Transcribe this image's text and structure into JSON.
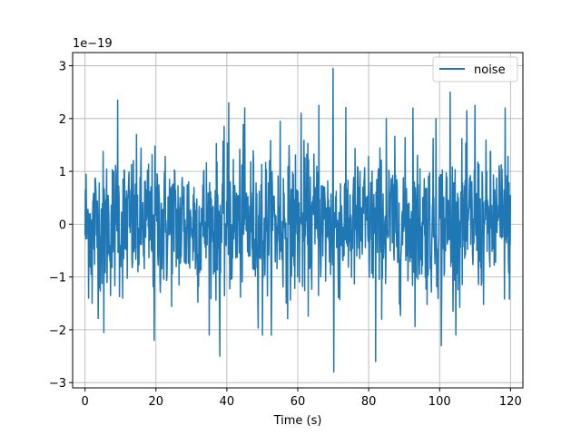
{
  "chart_data": {
    "type": "line",
    "title": "",
    "xlabel": "Time (s)",
    "ylabel": "",
    "y_scale_note": "1e−19",
    "xlim": [
      -3.5,
      123.5
    ],
    "ylim": [
      -3.1,
      3.25
    ],
    "x_ticks": [
      0,
      20,
      40,
      60,
      80,
      100,
      120
    ],
    "x_tick_labels": [
      "0",
      "20",
      "40",
      "60",
      "80",
      "100",
      "120"
    ],
    "y_ticks": [
      -3,
      -2,
      -1,
      0,
      1,
      2,
      3
    ],
    "y_tick_labels": [
      "−3",
      "−2",
      "−1",
      "0",
      "1",
      "2",
      "3"
    ],
    "grid": true,
    "legend_position": "top-right",
    "series": [
      {
        "name": "noise",
        "color": "#1f77b4",
        "x_range": [
          0,
          120
        ],
        "n_points": 1200,
        "std": 0.68,
        "y_observed_min": -2.8,
        "y_observed_max": 2.95,
        "notable_points": [
          {
            "x": 70,
            "y": 2.95
          },
          {
            "x": 70.2,
            "y": -2.8
          },
          {
            "x": 82,
            "y": -2.6
          },
          {
            "x": 38,
            "y": -2.5
          },
          {
            "x": 9.2,
            "y": 2.35
          },
          {
            "x": 103,
            "y": 2.5
          },
          {
            "x": 40.5,
            "y": 2.3
          },
          {
            "x": 45,
            "y": 2.2
          },
          {
            "x": 55,
            "y": 1.95
          },
          {
            "x": 61,
            "y": 2.1
          },
          {
            "x": 99,
            "y": 2.0
          },
          {
            "x": 100.5,
            "y": -2.3
          },
          {
            "x": 110,
            "y": 2.25
          },
          {
            "x": 118.5,
            "y": 2.2
          },
          {
            "x": 2.0,
            "y": -1.5
          },
          {
            "x": 5.3,
            "y": -2.05
          },
          {
            "x": 19.5,
            "y": -2.2
          },
          {
            "x": 50,
            "y": -2.1
          },
          {
            "x": 85,
            "y": 2.0
          },
          {
            "x": 92.5,
            "y": 2.2
          },
          {
            "x": 66,
            "y": 2.25
          }
        ]
      }
    ]
  }
}
